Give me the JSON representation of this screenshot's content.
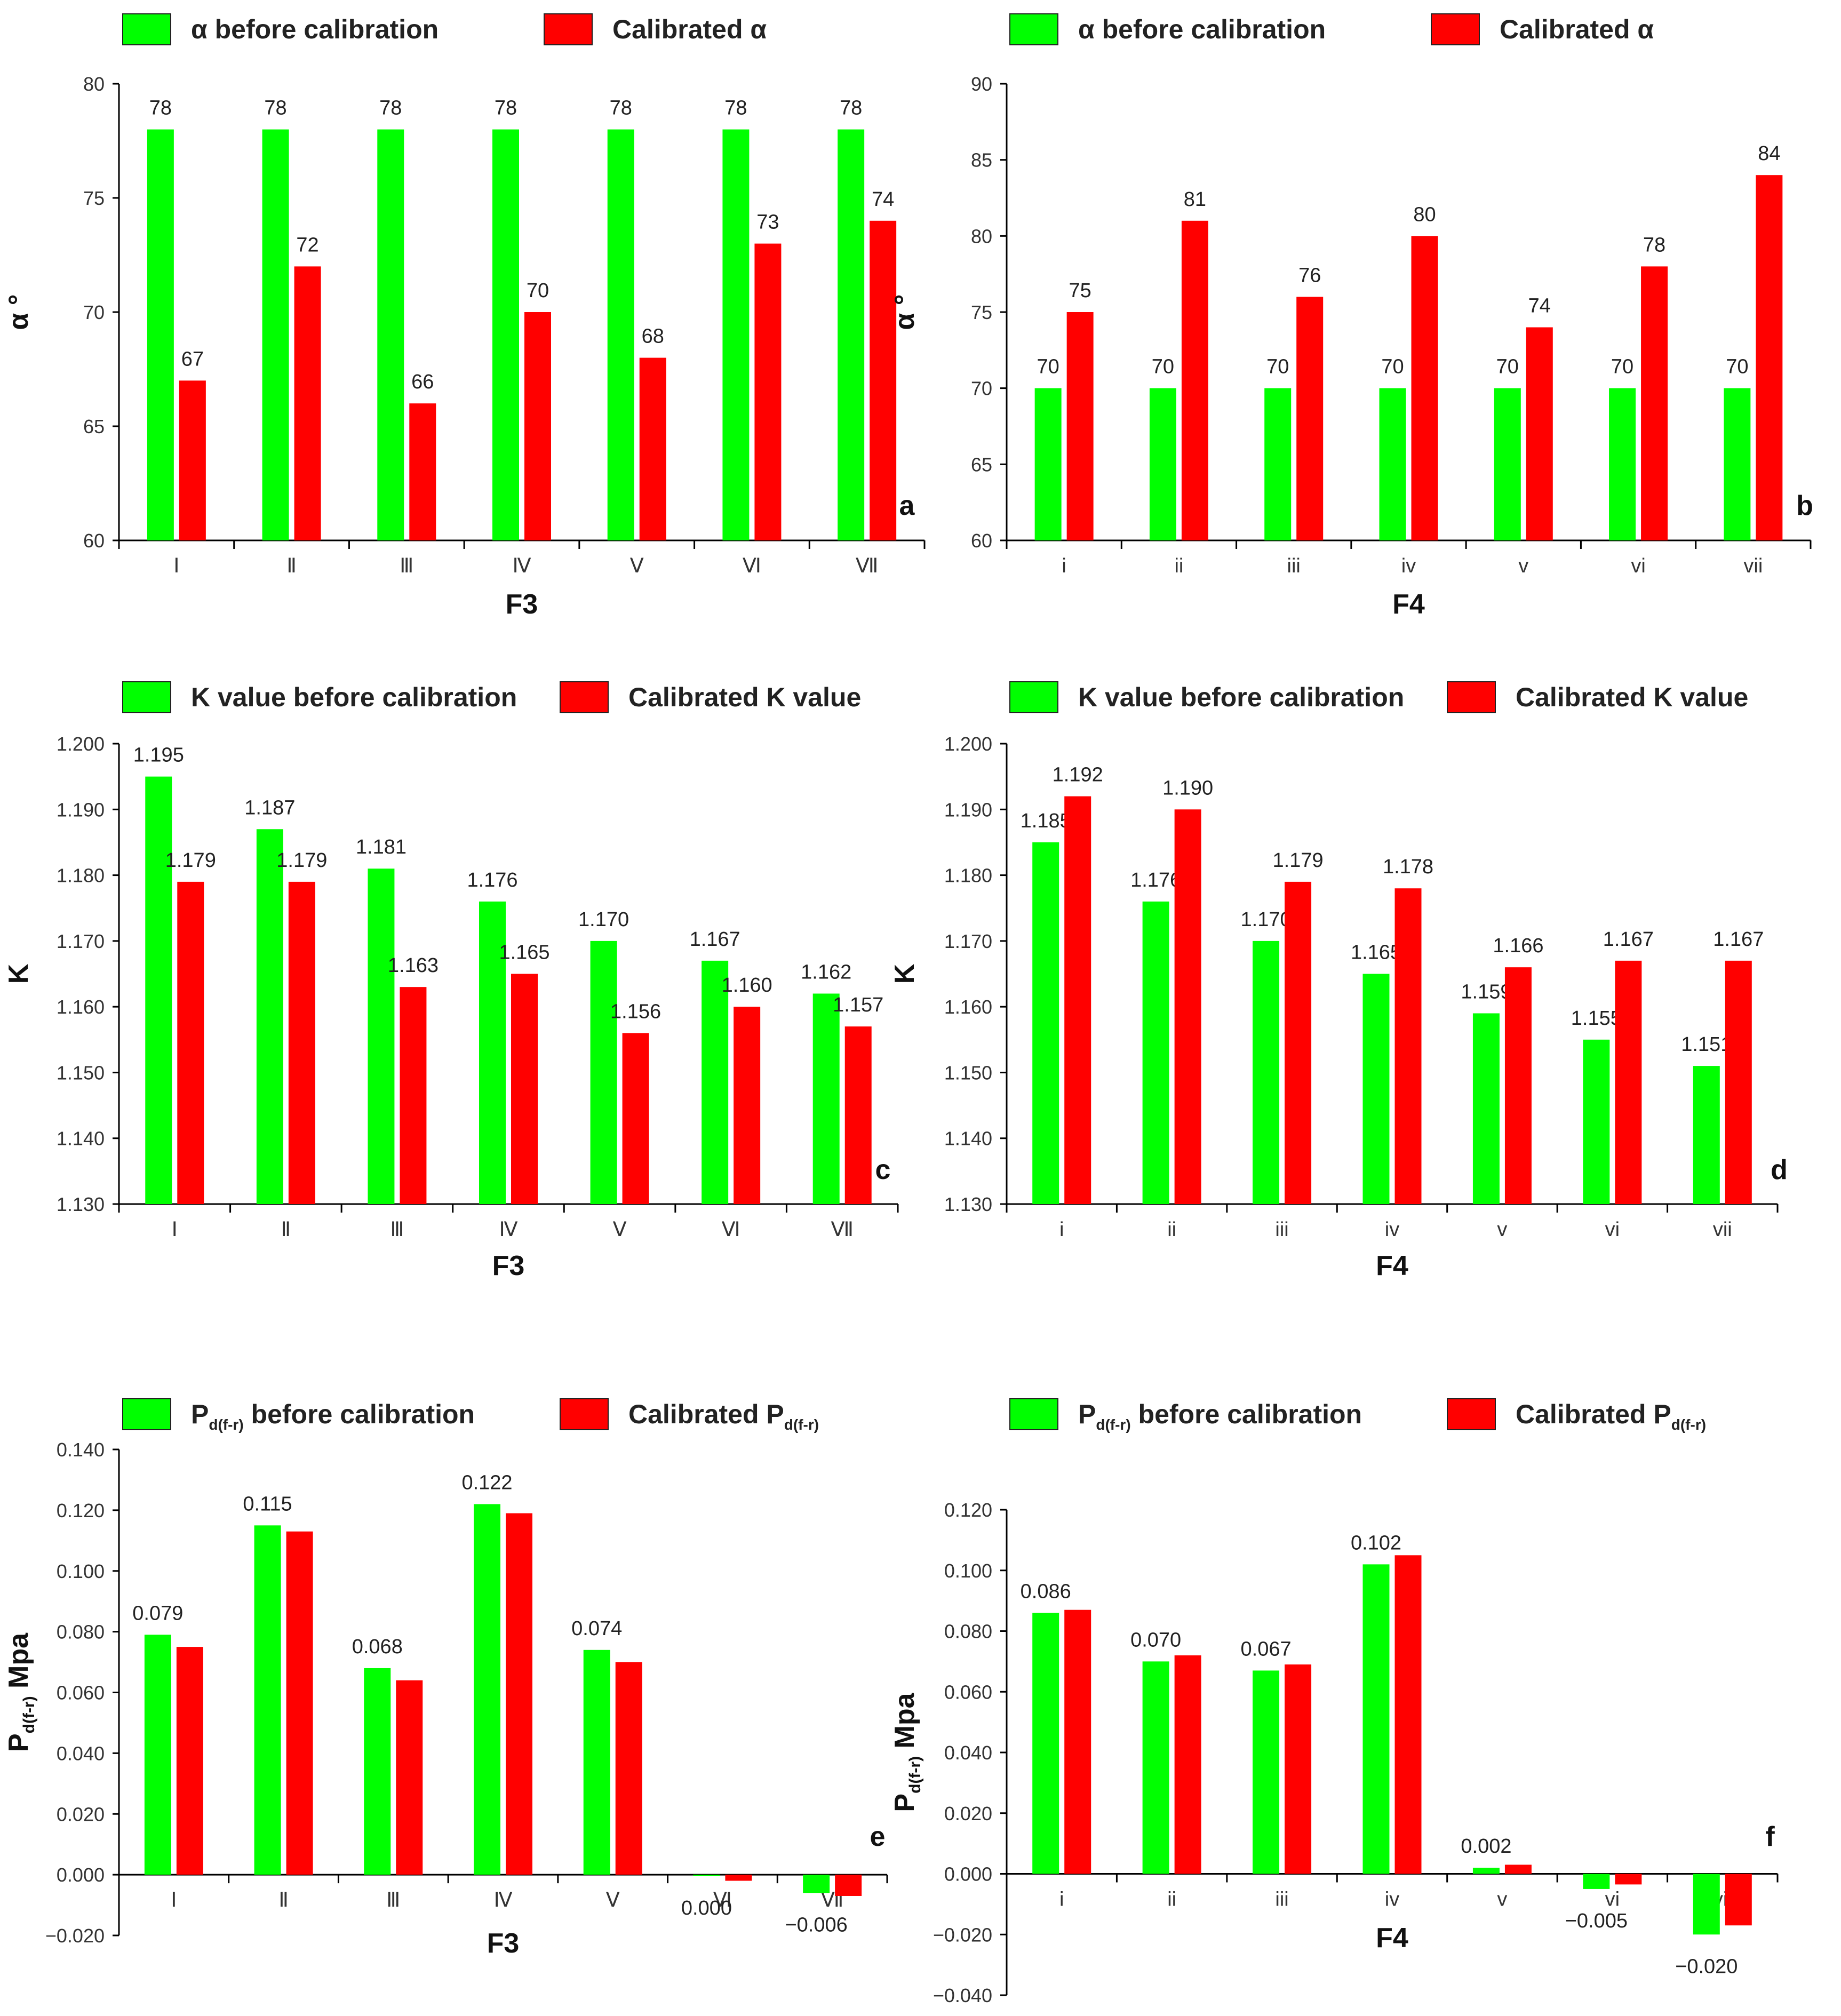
{
  "colors": {
    "before": "#00ff00",
    "after": "#ff0000",
    "axis": "#000000"
  },
  "chart_data": [
    {
      "id": "a",
      "type": "bar",
      "panel_letter": "a",
      "xlabel": "F3",
      "ylabel": "α °",
      "categories": [
        "Ⅰ",
        "Ⅱ",
        "Ⅲ",
        "Ⅳ",
        "Ⅴ",
        "Ⅵ",
        "Ⅶ"
      ],
      "ylim": [
        60,
        80
      ],
      "yticks": [
        60,
        65,
        70,
        75,
        80
      ],
      "tick_decimals": 0,
      "legend": [
        {
          "label": "α before calibration"
        },
        {
          "label": "Calibrated α"
        }
      ],
      "series": [
        {
          "name": "α before calibration",
          "values": [
            78,
            78,
            78,
            78,
            78,
            78,
            78
          ],
          "labels": [
            "78",
            "78",
            "78",
            "78",
            "78",
            "78",
            "78"
          ]
        },
        {
          "name": "Calibrated α",
          "values": [
            67,
            72,
            66,
            70,
            68,
            73,
            74
          ],
          "labels": [
            "67",
            "72",
            "66",
            "70",
            "68",
            "73",
            "74"
          ]
        }
      ]
    },
    {
      "id": "b",
      "type": "bar",
      "panel_letter": "b",
      "xlabel": "F4",
      "ylabel": "α °",
      "categories": [
        "i",
        "ii",
        "iii",
        "iv",
        "v",
        "vi",
        "vii"
      ],
      "ylim": [
        60,
        90
      ],
      "yticks": [
        60,
        65,
        70,
        75,
        80,
        85,
        90
      ],
      "tick_decimals": 0,
      "legend": [
        {
          "label": "α before calibration"
        },
        {
          "label": "Calibrated α"
        }
      ],
      "series": [
        {
          "name": "α before calibration",
          "values": [
            70,
            70,
            70,
            70,
            70,
            70,
            70
          ],
          "labels": [
            "70",
            "70",
            "70",
            "70",
            "70",
            "70",
            "70"
          ]
        },
        {
          "name": "Calibrated α",
          "values": [
            75,
            81,
            76,
            80,
            74,
            78,
            84
          ],
          "labels": [
            "75",
            "81",
            "76",
            "80",
            "74",
            "78",
            "84"
          ]
        }
      ]
    },
    {
      "id": "c",
      "type": "bar",
      "panel_letter": "c",
      "xlabel": "F3",
      "ylabel": "K",
      "categories": [
        "Ⅰ",
        "Ⅱ",
        "Ⅲ",
        "Ⅳ",
        "Ⅴ",
        "Ⅵ",
        "Ⅶ"
      ],
      "ylim": [
        1.13,
        1.2
      ],
      "yticks": [
        1.13,
        1.14,
        1.15,
        1.16,
        1.17,
        1.18,
        1.19,
        1.2
      ],
      "tick_decimals": 3,
      "legend": [
        {
          "label": "K value before calibration"
        },
        {
          "label": "Calibrated K value"
        }
      ],
      "series": [
        {
          "name": "K value before calibration",
          "values": [
            1.195,
            1.187,
            1.181,
            1.176,
            1.17,
            1.167,
            1.162
          ],
          "labels": [
            "1.195",
            "1.187",
            "1.181",
            "1.176",
            "1.170",
            "1.167",
            "1.162"
          ]
        },
        {
          "name": "Calibrated K value",
          "values": [
            1.179,
            1.179,
            1.163,
            1.165,
            1.156,
            1.16,
            1.157
          ],
          "labels": [
            "1.179",
            "1.179",
            "1.163",
            "1.165",
            "1.156",
            "1.160",
            "1.157"
          ]
        }
      ]
    },
    {
      "id": "d",
      "type": "bar",
      "panel_letter": "d",
      "xlabel": "F4",
      "ylabel": "K",
      "categories": [
        "i",
        "ii",
        "iii",
        "iv",
        "v",
        "vi",
        "vii"
      ],
      "ylim": [
        1.13,
        1.2
      ],
      "yticks": [
        1.13,
        1.14,
        1.15,
        1.16,
        1.17,
        1.18,
        1.19,
        1.2
      ],
      "tick_decimals": 3,
      "legend": [
        {
          "label": "K value before calibration"
        },
        {
          "label": "Calibrated K value"
        }
      ],
      "series": [
        {
          "name": "K value before calibration",
          "values": [
            1.185,
            1.176,
            1.17,
            1.165,
            1.159,
            1.155,
            1.151
          ],
          "labels": [
            "1.185",
            "1.176",
            "1.170",
            "1.165",
            "1.159",
            "1.155",
            "1.151"
          ]
        },
        {
          "name": "Calibrated K value",
          "values": [
            1.192,
            1.19,
            1.179,
            1.178,
            1.166,
            1.167,
            1.167
          ],
          "labels": [
            "1.192",
            "1.190",
            "1.179",
            "1.178",
            "1.166",
            "1.167",
            "1.167"
          ]
        }
      ]
    },
    {
      "id": "e",
      "type": "bar",
      "panel_letter": "e",
      "xlabel": "F3",
      "ylabel": "P",
      "ylabel_sub": "d(f-r)",
      "ylabel_suffix": " Mpa",
      "categories": [
        "Ⅰ",
        "Ⅱ",
        "Ⅲ",
        "Ⅳ",
        "Ⅴ",
        "Ⅵ",
        "Ⅶ"
      ],
      "ylim": [
        -0.02,
        0.14
      ],
      "yticks": [
        -0.02,
        0.0,
        0.02,
        0.04,
        0.06,
        0.08,
        0.1,
        0.12,
        0.14
      ],
      "tick_decimals": 3,
      "legend": [
        {
          "label": "P",
          "sub": "d(f-r)",
          "suffix": " before calibration"
        },
        {
          "label": "Calibrated P",
          "sub": "d(f-r)",
          "suffix": ""
        }
      ],
      "series": [
        {
          "name": "Pd(f-r) before calibration",
          "values": [
            0.079,
            0.115,
            0.068,
            0.122,
            0.074,
            -0.0005,
            -0.006
          ],
          "labels": [
            "0.079",
            "0.115",
            "0.068",
            "0.122",
            "0.074",
            "0.000",
            "−0.006"
          ]
        },
        {
          "name": "Calibrated Pd(f-r)",
          "values": [
            0.075,
            0.113,
            0.064,
            0.119,
            0.07,
            -0.002,
            -0.007
          ],
          "labels": null
        }
      ]
    },
    {
      "id": "f",
      "type": "bar",
      "panel_letter": "f",
      "xlabel": "F4",
      "ylabel": "P",
      "ylabel_sub": "d(f-r)",
      "ylabel_suffix": " Mpa",
      "categories": [
        "i",
        "ii",
        "iii",
        "iv",
        "v",
        "vi",
        "vii"
      ],
      "ylim": [
        -0.04,
        0.12
      ],
      "yticks": [
        -0.04,
        -0.02,
        0.0,
        0.02,
        0.04,
        0.06,
        0.08,
        0.1,
        0.12
      ],
      "tick_decimals": 3,
      "legend": [
        {
          "label": "P",
          "sub": "d(f-r)",
          "suffix": " before calibration"
        },
        {
          "label": "Calibrated P",
          "sub": "d(f-r)",
          "suffix": ""
        }
      ],
      "series": [
        {
          "name": "Pd(f-r) before calibration",
          "values": [
            0.086,
            0.07,
            0.067,
            0.102,
            0.002,
            -0.005,
            -0.02
          ],
          "labels": [
            "0.086",
            "0.070",
            "0.067",
            "0.102",
            "0.002",
            "−0.005",
            "−0.020"
          ]
        },
        {
          "name": "Calibrated Pd(f-r)",
          "values": [
            0.087,
            0.072,
            0.069,
            0.105,
            0.003,
            -0.0035,
            -0.017
          ],
          "labels": null
        }
      ]
    }
  ]
}
